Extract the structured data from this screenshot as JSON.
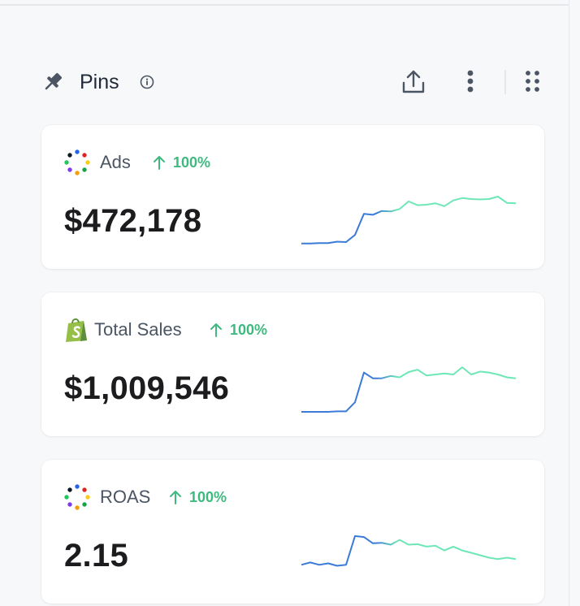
{
  "header": {
    "title": "Pins"
  },
  "colors": {
    "trend_up": "#3fb97f",
    "spark_start": "#3b7bd8",
    "spark_end": "#6ee7b7",
    "text_primary": "#1c1c1f",
    "text_secondary": "#4b5563"
  },
  "cards": [
    {
      "label": "Ads",
      "icon": "ads-dots-icon",
      "trend": "100%",
      "value": "$472,178",
      "sparkline": [
        0.02,
        0.02,
        0.03,
        0.03,
        0.06,
        0.05,
        0.2,
        0.64,
        0.62,
        0.7,
        0.69,
        0.74,
        0.9,
        0.82,
        0.83,
        0.86,
        0.8,
        0.92,
        0.97,
        0.95,
        0.94,
        0.95,
        1.0,
        0.87,
        0.86
      ]
    },
    {
      "label": "Total Sales",
      "icon": "shopify-icon",
      "trend": "100%",
      "value": "$1,009,546",
      "sparkline": [
        0.0,
        0.0,
        0.0,
        0.0,
        0.01,
        0.01,
        0.2,
        0.82,
        0.7,
        0.7,
        0.75,
        0.72,
        0.83,
        0.88,
        0.76,
        0.78,
        0.8,
        0.78,
        0.93,
        0.78,
        0.84,
        0.82,
        0.78,
        0.72,
        0.7
      ]
    },
    {
      "label": "ROAS",
      "icon": "ads-dots-icon",
      "trend": "100%",
      "value": "2.15",
      "sparkline": [
        0.3,
        0.35,
        0.3,
        0.33,
        0.28,
        0.3,
        0.9,
        0.88,
        0.75,
        0.76,
        0.72,
        0.82,
        0.72,
        0.73,
        0.68,
        0.7,
        0.6,
        0.68,
        0.6,
        0.55,
        0.5,
        0.45,
        0.42,
        0.45,
        0.42
      ]
    }
  ]
}
